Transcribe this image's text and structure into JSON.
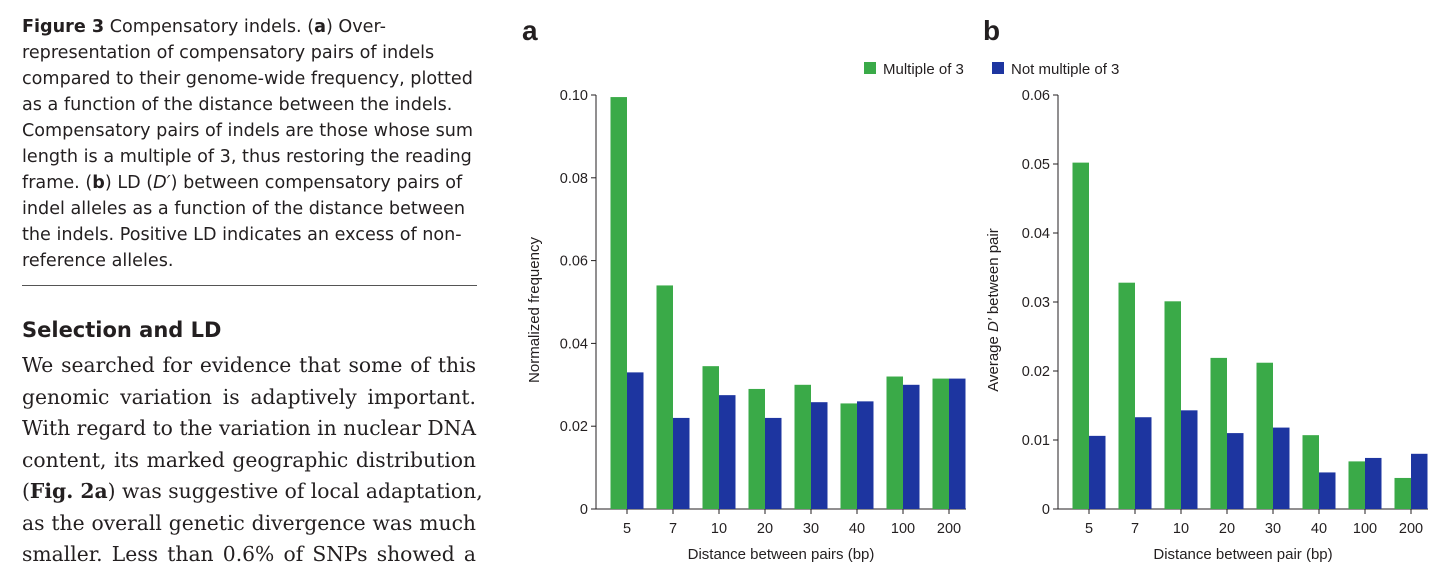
{
  "caption": {
    "fig_label": "Figure 3",
    "title": "Compensatory indels.",
    "part_a": "a",
    "text_a": "Over-representation of compensatory pairs of indels compared to their genome-wide frequency, plotted as a function of the distance between the indels. Compensatory pairs of indels are those whose sum length is a multiple of 3, thus restoring the reading frame.",
    "part_b": "b",
    "text_b_1": "LD (",
    "text_b_d": "D′",
    "text_b_2": ") between compensatory pairs of indel alleles as a function of the distance between the indels. Positive LD indicates an excess of non-reference alleles."
  },
  "section": {
    "heading": "Selection and LD",
    "lines": [
      "We searched for evidence that some of this",
      "genomic variation is adaptively important.",
      "With regard to the variation in nuclear DNA",
      "content, its marked geographic distribution"
    ],
    "line5_open": "(",
    "line5_ref": "Fig. 2a",
    "line5_rest": ") was suggestive of local adaptation,",
    "lines_after": [
      "as the overall genetic divergence was much",
      "smaller. Less than 0.6% of SNPs showed a"
    ]
  },
  "legend": {
    "series1": "Multiple of 3",
    "series2": "Not multiple of 3"
  },
  "colors": {
    "series1": "#3aaa48",
    "series2": "#1d35a0"
  },
  "chart_data": [
    {
      "type": "bar",
      "panel": "a",
      "categories": [
        "5",
        "7",
        "10",
        "20",
        "30",
        "40",
        "100",
        "200"
      ],
      "series": [
        {
          "name": "Multiple of 3",
          "values": [
            0.0995,
            0.054,
            0.0345,
            0.029,
            0.03,
            0.0255,
            0.032,
            0.0315
          ]
        },
        {
          "name": "Not multiple of 3",
          "values": [
            0.033,
            0.022,
            0.0275,
            0.022,
            0.0258,
            0.026,
            0.03,
            0.0315
          ]
        }
      ],
      "yticks": [
        "0",
        "0.02",
        "0.04",
        "0.06",
        "0.08",
        "0.10"
      ],
      "ylim": [
        0,
        0.1
      ],
      "xlabel": "Distance between pairs (bp)",
      "ylabel": "Normalized frequency"
    },
    {
      "type": "bar",
      "panel": "b",
      "categories": [
        "5",
        "7",
        "10",
        "20",
        "30",
        "40",
        "100",
        "200"
      ],
      "series": [
        {
          "name": "Multiple of 3",
          "values": [
            0.0502,
            0.0328,
            0.0301,
            0.0219,
            0.0212,
            0.0107,
            0.0069,
            0.0045
          ]
        },
        {
          "name": "Not multiple of 3",
          "values": [
            0.0106,
            0.0133,
            0.0143,
            0.011,
            0.0118,
            0.0053,
            0.0074,
            0.008
          ]
        }
      ],
      "yticks": [
        "0",
        "0.01",
        "0.02",
        "0.03",
        "0.04",
        "0.05",
        "0.06"
      ],
      "ylim": [
        0,
        0.06
      ],
      "xlabel": "Distance between pair (bp)",
      "ylabel_pre": "Average ",
      "ylabel_italic": "D′",
      "ylabel_post": " between pair"
    }
  ]
}
